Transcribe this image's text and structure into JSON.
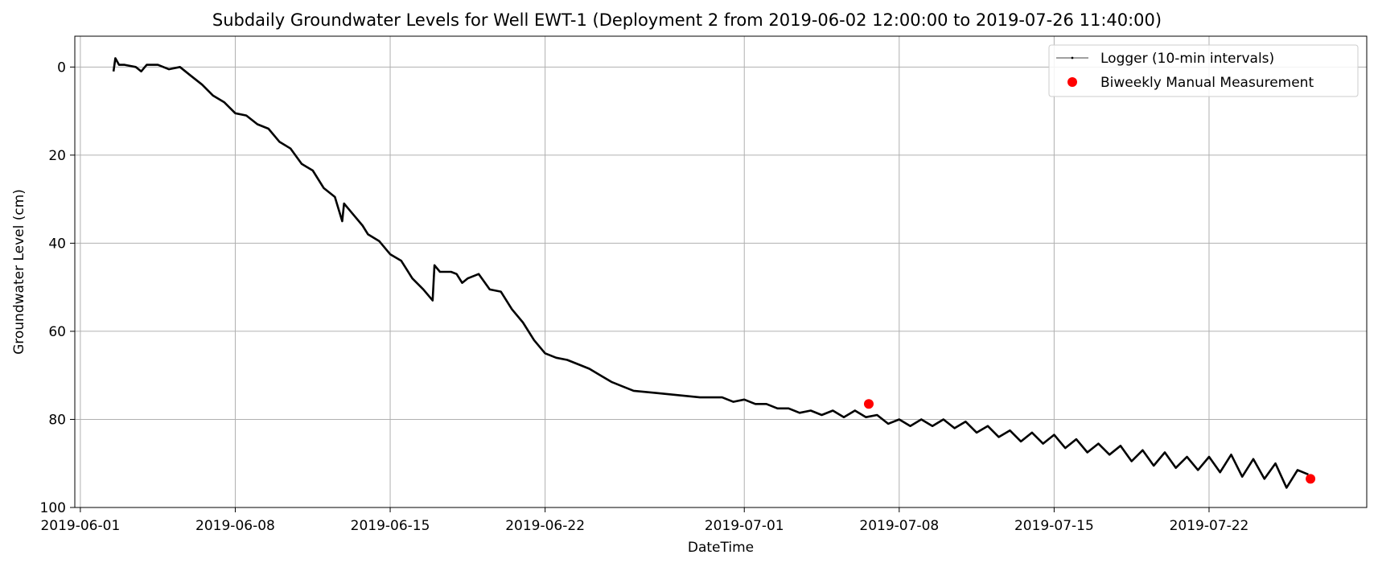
{
  "chart_data": {
    "type": "line",
    "title": "Subdaily Groundwater Levels for Well EWT-1 (Deployment 2 from 2019-06-02 12:00:00 to 2019-07-26 11:40:00)",
    "xlabel": "DateTime",
    "ylabel": "Groundwater Level (cm)",
    "xlim": [
      "2019-05-31T18:00",
      "2019-07-29T03:00"
    ],
    "ylim": [
      100,
      -7
    ],
    "y_inverted": true,
    "yticks": [
      0,
      20,
      40,
      60,
      80,
      100
    ],
    "xticks": [
      "2019-06-01",
      "2019-06-08",
      "2019-06-15",
      "2019-06-22",
      "2019-07-01",
      "2019-07-08",
      "2019-07-15",
      "2019-07-22"
    ],
    "grid": true,
    "legend": {
      "placement": "top-right",
      "entries": [
        "Logger (10-min intervals)",
        "Biweekly Manual Measurement"
      ]
    },
    "series": [
      {
        "name": "Logger (10-min intervals)",
        "style": "line",
        "color": "#000000",
        "points": [
          [
            "2019-06-02T12:00",
            1
          ],
          [
            "2019-06-02T14:00",
            -2
          ],
          [
            "2019-06-02T18:00",
            -0.5
          ],
          [
            "2019-06-03T00:00",
            -0.5
          ],
          [
            "2019-06-03T12:00",
            0
          ],
          [
            "2019-06-03T18:00",
            1
          ],
          [
            "2019-06-04T00:00",
            -0.5
          ],
          [
            "2019-06-04T12:00",
            -0.5
          ],
          [
            "2019-06-05T00:00",
            0.5
          ],
          [
            "2019-06-05T12:00",
            0
          ],
          [
            "2019-06-06T00:00",
            2
          ],
          [
            "2019-06-06T12:00",
            4
          ],
          [
            "2019-06-07T00:00",
            6.5
          ],
          [
            "2019-06-07T12:00",
            8
          ],
          [
            "2019-06-08T00:00",
            10.5
          ],
          [
            "2019-06-08T12:00",
            11
          ],
          [
            "2019-06-09T00:00",
            13
          ],
          [
            "2019-06-09T12:00",
            14
          ],
          [
            "2019-06-10T00:00",
            17
          ],
          [
            "2019-06-10T12:00",
            18.5
          ],
          [
            "2019-06-11T00:00",
            22
          ],
          [
            "2019-06-11T12:00",
            23.5
          ],
          [
            "2019-06-12T00:00",
            27.5
          ],
          [
            "2019-06-12T12:00",
            29.5
          ],
          [
            "2019-06-12T20:00",
            35
          ],
          [
            "2019-06-12T22:00",
            31
          ],
          [
            "2019-06-13T06:00",
            33
          ],
          [
            "2019-06-13T18:00",
            36
          ],
          [
            "2019-06-14T00:00",
            38
          ],
          [
            "2019-06-14T12:00",
            39.5
          ],
          [
            "2019-06-15T00:00",
            42.5
          ],
          [
            "2019-06-15T12:00",
            44
          ],
          [
            "2019-06-16T00:00",
            48
          ],
          [
            "2019-06-16T12:00",
            50.5
          ],
          [
            "2019-06-16T22:00",
            53
          ],
          [
            "2019-06-17T00:00",
            45
          ],
          [
            "2019-06-17T06:00",
            46.5
          ],
          [
            "2019-06-17T18:00",
            46.5
          ],
          [
            "2019-06-18T00:00",
            47
          ],
          [
            "2019-06-18T06:00",
            49
          ],
          [
            "2019-06-18T12:00",
            48
          ],
          [
            "2019-06-19T00:00",
            47
          ],
          [
            "2019-06-19T12:00",
            50.5
          ],
          [
            "2019-06-20T00:00",
            51
          ],
          [
            "2019-06-20T12:00",
            55
          ],
          [
            "2019-06-21T00:00",
            58
          ],
          [
            "2019-06-21T12:00",
            62
          ],
          [
            "2019-06-22T00:00",
            65
          ],
          [
            "2019-06-22T12:00",
            66
          ],
          [
            "2019-06-23T00:00",
            66.5
          ],
          [
            "2019-06-23T12:00",
            67.5
          ],
          [
            "2019-06-24T00:00",
            68.5
          ],
          [
            "2019-06-24T12:00",
            70
          ],
          [
            "2019-06-25T00:00",
            71.5
          ],
          [
            "2019-06-25T12:00",
            72.5
          ],
          [
            "2019-06-26T00:00",
            73.5
          ],
          [
            "2019-06-27T00:00",
            74
          ],
          [
            "2019-06-28T00:00",
            74.5
          ],
          [
            "2019-06-29T00:00",
            75
          ],
          [
            "2019-06-30T00:00",
            75
          ],
          [
            "2019-06-30T12:00",
            76
          ],
          [
            "2019-07-01T00:00",
            75.5
          ],
          [
            "2019-07-01T12:00",
            76.5
          ],
          [
            "2019-07-02T00:00",
            76.5
          ],
          [
            "2019-07-02T12:00",
            77.5
          ],
          [
            "2019-07-03T00:00",
            77.5
          ],
          [
            "2019-07-03T12:00",
            78.5
          ],
          [
            "2019-07-04T00:00",
            78
          ],
          [
            "2019-07-04T12:00",
            79
          ],
          [
            "2019-07-05T00:00",
            78
          ],
          [
            "2019-07-05T12:00",
            79.5
          ],
          [
            "2019-07-06T00:00",
            78
          ],
          [
            "2019-07-06T12:00",
            79.5
          ],
          [
            "2019-07-07T00:00",
            79
          ],
          [
            "2019-07-07T12:00",
            81
          ],
          [
            "2019-07-08T00:00",
            80
          ],
          [
            "2019-07-08T12:00",
            81.5
          ],
          [
            "2019-07-09T00:00",
            80
          ],
          [
            "2019-07-09T12:00",
            81.5
          ],
          [
            "2019-07-10T00:00",
            80
          ],
          [
            "2019-07-10T12:00",
            82
          ],
          [
            "2019-07-11T00:00",
            80.5
          ],
          [
            "2019-07-11T12:00",
            83
          ],
          [
            "2019-07-12T00:00",
            81.5
          ],
          [
            "2019-07-12T12:00",
            84
          ],
          [
            "2019-07-13T00:00",
            82.5
          ],
          [
            "2019-07-13T12:00",
            85
          ],
          [
            "2019-07-14T00:00",
            83
          ],
          [
            "2019-07-14T12:00",
            85.5
          ],
          [
            "2019-07-15T00:00",
            83.5
          ],
          [
            "2019-07-15T12:00",
            86.5
          ],
          [
            "2019-07-16T00:00",
            84.5
          ],
          [
            "2019-07-16T12:00",
            87.5
          ],
          [
            "2019-07-17T00:00",
            85.5
          ],
          [
            "2019-07-17T12:00",
            88
          ],
          [
            "2019-07-18T00:00",
            86
          ],
          [
            "2019-07-18T12:00",
            89.5
          ],
          [
            "2019-07-19T00:00",
            87
          ],
          [
            "2019-07-19T12:00",
            90.5
          ],
          [
            "2019-07-20T00:00",
            87.5
          ],
          [
            "2019-07-20T12:00",
            91
          ],
          [
            "2019-07-21T00:00",
            88.5
          ],
          [
            "2019-07-21T12:00",
            91.5
          ],
          [
            "2019-07-22T00:00",
            88.5
          ],
          [
            "2019-07-22T12:00",
            92
          ],
          [
            "2019-07-23T00:00",
            88
          ],
          [
            "2019-07-23T12:00",
            93
          ],
          [
            "2019-07-24T00:00",
            89
          ],
          [
            "2019-07-24T12:00",
            93.5
          ],
          [
            "2019-07-25T00:00",
            90
          ],
          [
            "2019-07-25T12:00",
            95.5
          ],
          [
            "2019-07-26T00:00",
            91.5
          ],
          [
            "2019-07-26T11:40",
            92.5
          ]
        ]
      },
      {
        "name": "Biweekly Manual Measurement",
        "style": "scatter",
        "color": "#ff0000",
        "points": [
          [
            "2019-07-06T15:00",
            76.5
          ],
          [
            "2019-07-26T14:00",
            93.5
          ]
        ]
      }
    ]
  }
}
